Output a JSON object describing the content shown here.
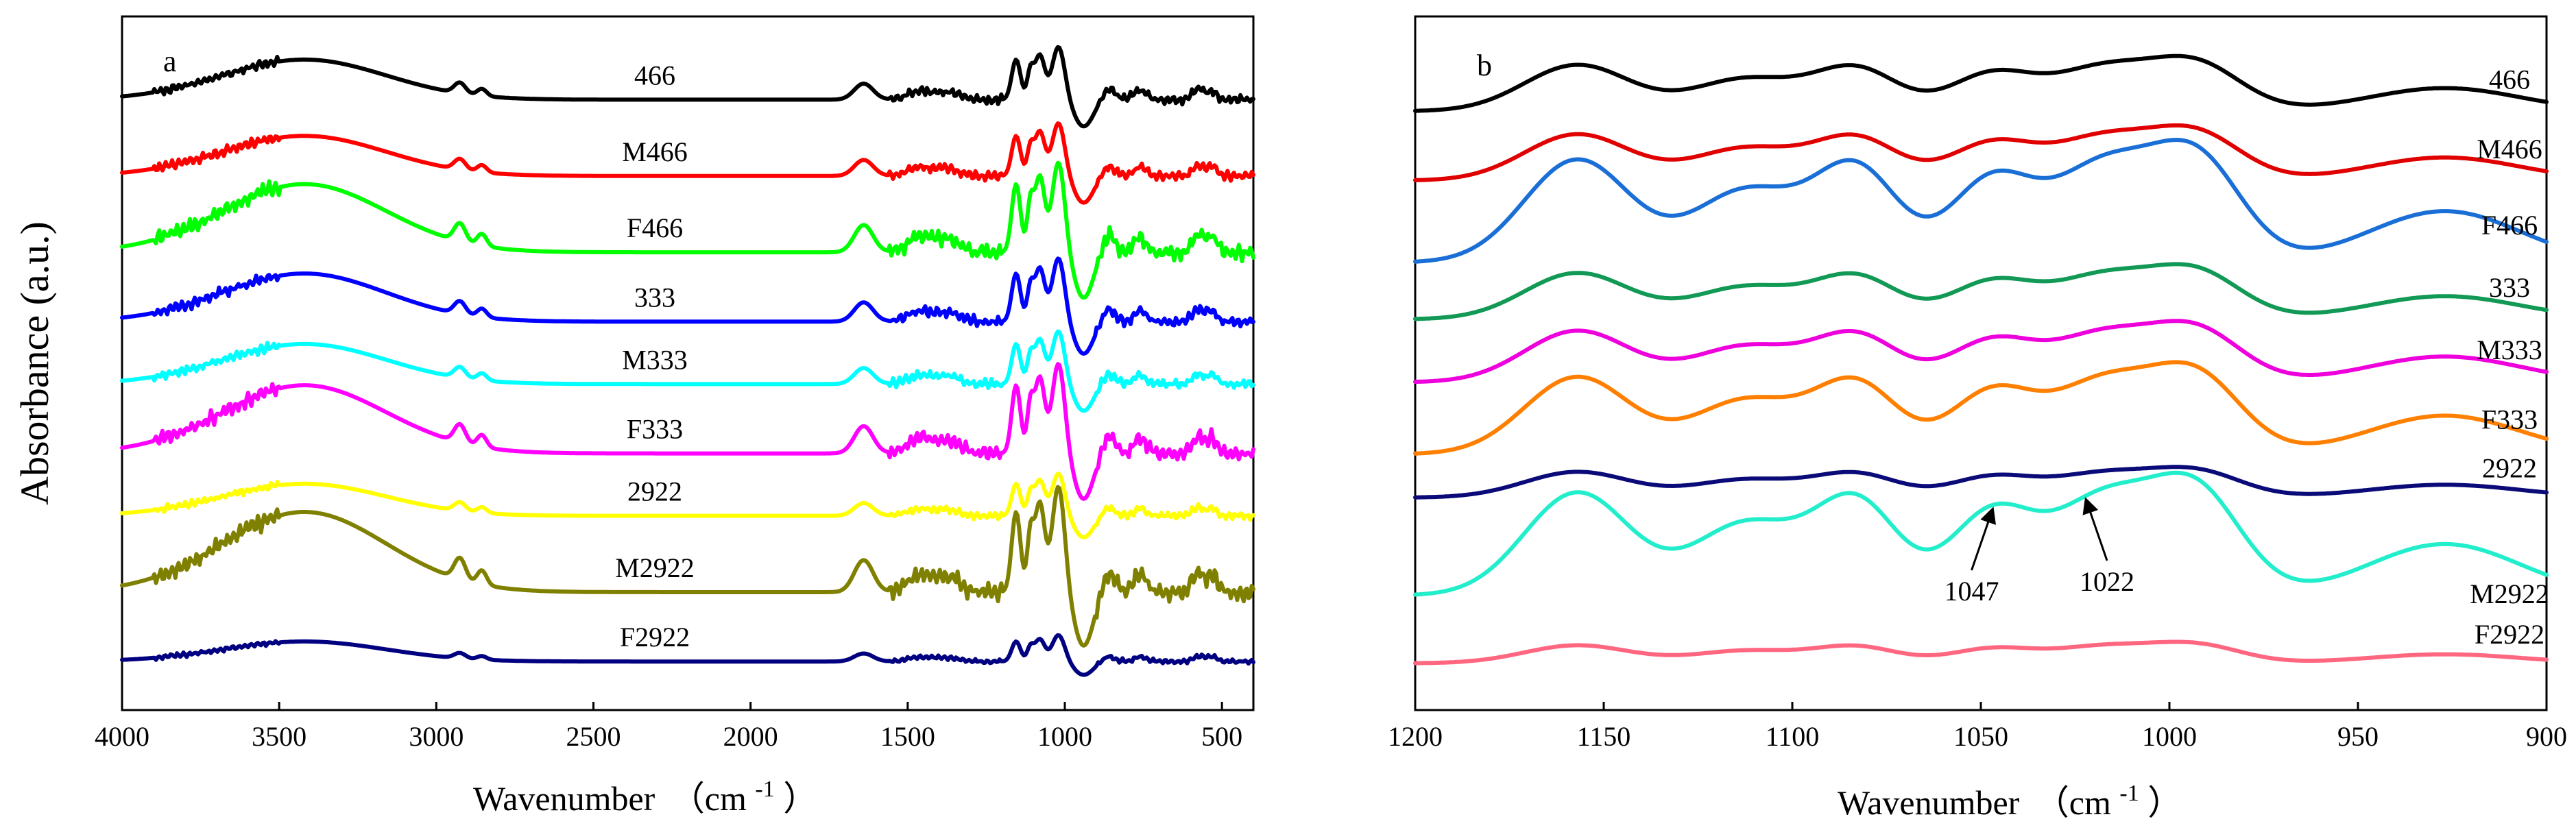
{
  "chart_data": [
    {
      "type": "line",
      "panel_label": "a",
      "xlabel": "Wavenumber",
      "xlabel_unit": "（cm",
      "xlabel_unit_sup": "-1",
      "xlabel_unit_close": "）",
      "ylabel": "Absorbance (a.u.)",
      "xlim": [
        4000,
        400
      ],
      "xticks": [
        4000,
        3500,
        3000,
        2500,
        2000,
        1500,
        1000,
        500
      ],
      "series": [
        {
          "name": "466",
          "color": "#000000",
          "baseline": 0.88,
          "scale": 1.0
        },
        {
          "name": "M466",
          "color": "#ff0000",
          "baseline": 0.77,
          "scale": 1.0
        },
        {
          "name": "F466",
          "color": "#00ff00",
          "baseline": 0.66,
          "scale": 1.7
        },
        {
          "name": "333",
          "color": "#0000ff",
          "baseline": 0.56,
          "scale": 1.2
        },
        {
          "name": "M333",
          "color": "#00ffff",
          "baseline": 0.47,
          "scale": 1.0
        },
        {
          "name": "F333",
          "color": "#ff00ff",
          "baseline": 0.37,
          "scale": 1.7
        },
        {
          "name": "2922",
          "color": "#ffff00",
          "baseline": 0.28,
          "scale": 0.8
        },
        {
          "name": "M2922",
          "color": "#808000",
          "baseline": 0.17,
          "scale": 2.0
        },
        {
          "name": "F2922",
          "color": "#000080",
          "baseline": 0.07,
          "scale": 0.5
        }
      ]
    },
    {
      "type": "line",
      "panel_label": "b",
      "xlabel": "Wavenumber",
      "xlabel_unit": "（cm",
      "xlabel_unit_sup": "-1",
      "xlabel_unit_close": "）",
      "xlim": [
        1200,
        900
      ],
      "xticks": [
        1200,
        1150,
        1100,
        1050,
        1000,
        950,
        900
      ],
      "series": [
        {
          "name": "466",
          "color": "#000000",
          "baseline": 0.87,
          "scale": 0.9
        },
        {
          "name": "M466",
          "color": "#e00000",
          "baseline": 0.77,
          "scale": 0.9
        },
        {
          "name": "F466",
          "color": "#1a6fd6",
          "baseline": 0.66,
          "scale": 2.0
        },
        {
          "name": "333",
          "color": "#119955",
          "baseline": 0.57,
          "scale": 0.9
        },
        {
          "name": "M333",
          "color": "#ee00dd",
          "baseline": 0.48,
          "scale": 1.0
        },
        {
          "name": "F333",
          "color": "#ff7f00",
          "baseline": 0.38,
          "scale": 1.5
        },
        {
          "name": "2922",
          "color": "#0a0a78",
          "baseline": 0.31,
          "scale": 0.5
        },
        {
          "name": "M2922",
          "color": "#22eecc",
          "baseline": 0.18,
          "scale": 2.0
        },
        {
          "name": "F2922",
          "color": "#ff6680",
          "baseline": 0.07,
          "scale": 0.35
        }
      ],
      "annotations": [
        {
          "text": "1047",
          "x": 1047,
          "target_series": "M2922"
        },
        {
          "text": "1022",
          "x": 1022,
          "target_series": "M2922"
        }
      ]
    }
  ]
}
